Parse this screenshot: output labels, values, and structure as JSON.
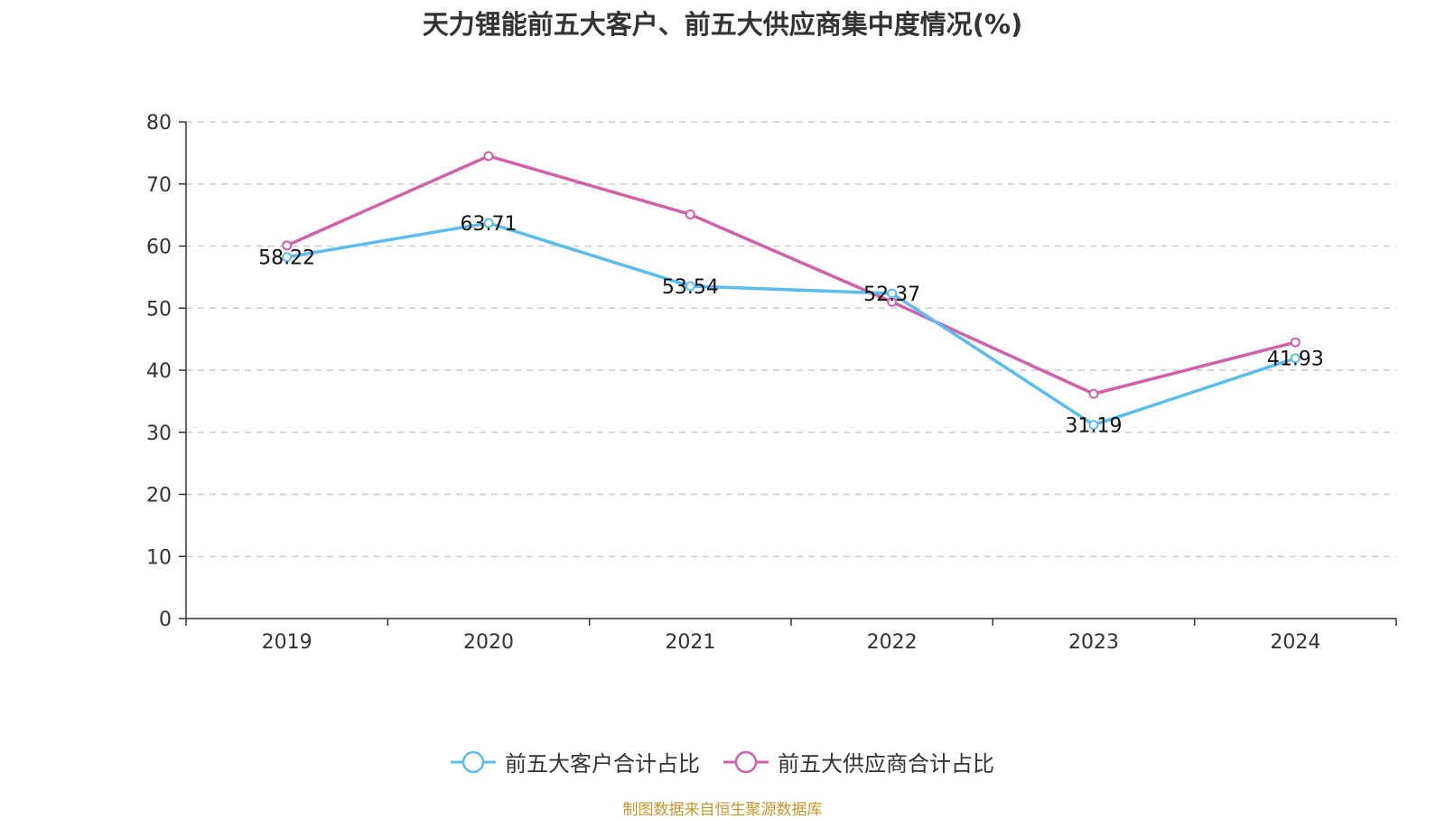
{
  "chart_data": {
    "type": "line",
    "title": "天力锂能前五大客户、前五大供应商集中度情况(%)",
    "categories": [
      "2019",
      "2020",
      "2021",
      "2022",
      "2023",
      "2024"
    ],
    "series": [
      {
        "name": "前五大客户合计占比",
        "color": "#5bbcf0",
        "values": [
          58.22,
          63.71,
          53.54,
          52.37,
          31.19,
          41.93
        ],
        "labels": [
          "58.22",
          "63.71",
          "53.54",
          "52.37",
          "31.19",
          "41.93"
        ]
      },
      {
        "name": "前五大供应商合计占比",
        "color": "#d060a8",
        "values": [
          60.1,
          74.5,
          65.1,
          51.0,
          36.2,
          44.5
        ]
      }
    ],
    "ylim": [
      0,
      80
    ],
    "yticks": [
      0,
      10,
      20,
      30,
      40,
      50,
      60,
      70,
      80
    ],
    "grid": true,
    "legend": "bottom"
  },
  "source": "制图数据来自恒生聚源数据库"
}
